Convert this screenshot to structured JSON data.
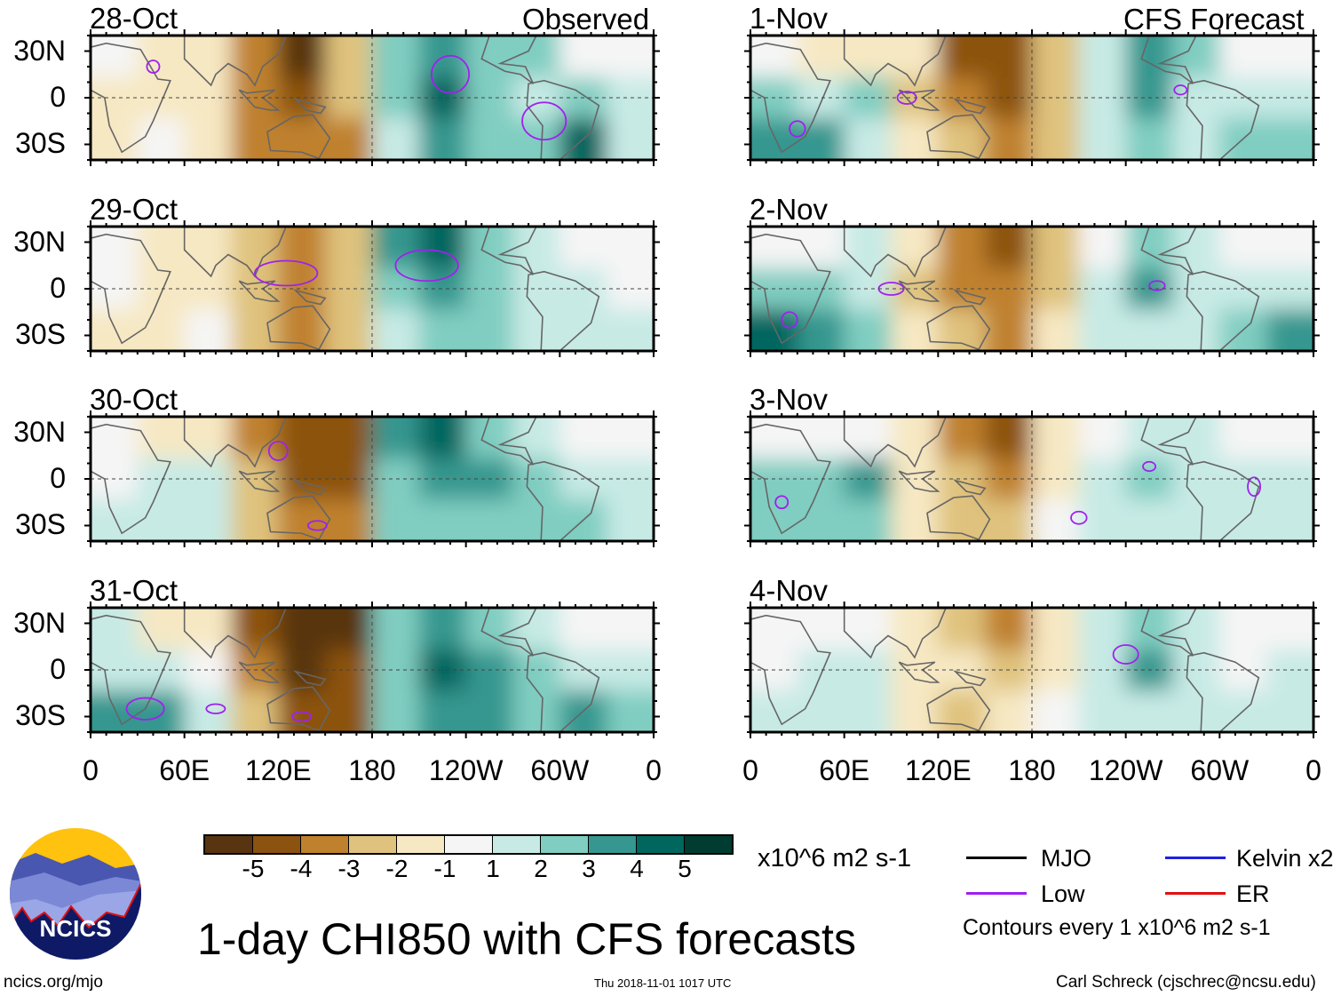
{
  "header": {
    "observed_label": "Observed",
    "forecast_label": "CFS Forecast"
  },
  "yticks": [
    "30N",
    "0",
    "30S"
  ],
  "xticks": [
    "0",
    "60E",
    "120E",
    "180",
    "120W",
    "60W",
    "0"
  ],
  "colorbar": {
    "labels": [
      "-5",
      "-4",
      "-3",
      "-2",
      "-1",
      "1",
      "2",
      "3",
      "4",
      "5"
    ],
    "colors": [
      "#583510",
      "#8c520f",
      "#bf812d",
      "#dfc27d",
      "#f6e8c3",
      "#f5f5f5",
      "#c7eae5",
      "#80cdc1",
      "#35978f",
      "#01665e",
      "#003c30"
    ],
    "units": "x10^6 m2 s-1"
  },
  "legend": {
    "items": [
      {
        "label": "MJO",
        "color": "#000000"
      },
      {
        "label": "Low",
        "color": "#a020f0"
      },
      {
        "label": "Kelvin x2",
        "color": "#2020e0"
      },
      {
        "label": "ER",
        "color": "#e01010"
      }
    ],
    "contours": "Contours every 1 x10^6 m2 s-1"
  },
  "title": "1-day CHI850 with CFS forecasts",
  "footer": {
    "url": "ncics.org/mjo",
    "timestamp": "Thu 2018-11-01 1017 UTC",
    "author": "Carl Schreck (cjschrec@ncsu.edu)"
  },
  "logo": {
    "text": "NCICS"
  },
  "chart_data": {
    "type": "heatmap",
    "title": "1-day CHI850 with CFS forecasts",
    "units": "x10^6 m2 s-1",
    "lon_range": [
      0,
      360
    ],
    "lat_range": [
      -40,
      40
    ],
    "grid_lon_centers": [
      15,
      45,
      75,
      105,
      135,
      165,
      195,
      225,
      255,
      285,
      315,
      345
    ],
    "grid_lat_rows": [
      "25N",
      "0",
      "25S"
    ],
    "panels": [
      {
        "date": "28-Oct",
        "kind": "observed",
        "values": [
          [
            0,
            -1,
            -1
          ],
          [
            -1,
            -1,
            0
          ],
          [
            -1,
            -1,
            -1
          ],
          [
            -3,
            -3,
            -3
          ],
          [
            -5,
            -4,
            -3
          ],
          [
            -2,
            -2,
            -3
          ],
          [
            2,
            2,
            1
          ],
          [
            3,
            4,
            3
          ],
          [
            2,
            2,
            2
          ],
          [
            2,
            1,
            2
          ],
          [
            0,
            2,
            4
          ],
          [
            0,
            1,
            1
          ]
        ],
        "low_contours": [
          [
            40,
            20,
            4,
            4
          ],
          [
            230,
            15,
            12,
            12
          ],
          [
            290,
            -15,
            14,
            12
          ]
        ]
      },
      {
        "date": "29-Oct",
        "kind": "observed",
        "values": [
          [
            0,
            0,
            -1
          ],
          [
            -1,
            -1,
            -1
          ],
          [
            -1,
            -1,
            0
          ],
          [
            -2,
            -2,
            -2
          ],
          [
            -3,
            -3,
            -3
          ],
          [
            -2,
            -2,
            -2
          ],
          [
            3,
            2,
            1
          ],
          [
            4,
            3,
            2
          ],
          [
            2,
            2,
            2
          ],
          [
            1,
            1,
            1
          ],
          [
            0,
            1,
            1
          ],
          [
            0,
            0,
            1
          ]
        ],
        "low_contours": [
          [
            215,
            15,
            20,
            10
          ],
          [
            125,
            10,
            20,
            8
          ]
        ]
      },
      {
        "date": "30-Oct",
        "kind": "observed",
        "values": [
          [
            0,
            0,
            1
          ],
          [
            -1,
            1,
            1
          ],
          [
            -1,
            1,
            1
          ],
          [
            -3,
            -2,
            -2
          ],
          [
            -4,
            -4,
            -3
          ],
          [
            -4,
            -4,
            -3
          ],
          [
            3,
            2,
            2
          ],
          [
            4,
            3,
            2
          ],
          [
            2,
            3,
            2
          ],
          [
            1,
            2,
            2
          ],
          [
            0,
            1,
            2
          ],
          [
            0,
            1,
            1
          ]
        ],
        "low_contours": [
          [
            120,
            18,
            6,
            6
          ],
          [
            145,
            -30,
            6,
            3
          ]
        ]
      },
      {
        "date": "31-Oct",
        "kind": "observed",
        "values": [
          [
            1,
            1,
            3
          ],
          [
            -1,
            1,
            3
          ],
          [
            -1,
            0,
            1
          ],
          [
            -4,
            -3,
            -2
          ],
          [
            -5,
            -5,
            -4
          ],
          [
            -5,
            -4,
            -4
          ],
          [
            2,
            2,
            2
          ],
          [
            3,
            4,
            3
          ],
          [
            2,
            3,
            3
          ],
          [
            1,
            2,
            2
          ],
          [
            0,
            1,
            3
          ],
          [
            0,
            1,
            2
          ]
        ],
        "low_contours": [
          [
            35,
            -25,
            12,
            7
          ],
          [
            80,
            -25,
            6,
            3
          ],
          [
            135,
            -30,
            6,
            3
          ]
        ]
      },
      {
        "date": "1-Nov",
        "kind": "forecast",
        "values": [
          [
            0,
            2,
            3
          ],
          [
            -1,
            1,
            3
          ],
          [
            -1,
            2,
            1
          ],
          [
            -1,
            -2,
            -1
          ],
          [
            -4,
            -3,
            -2
          ],
          [
            -4,
            -4,
            -3
          ],
          [
            -2,
            -2,
            -2
          ],
          [
            1,
            1,
            1
          ],
          [
            3,
            3,
            2
          ],
          [
            2,
            1,
            1
          ],
          [
            0,
            1,
            2
          ],
          [
            0,
            1,
            2
          ]
        ],
        "low_contours": [
          [
            30,
            -20,
            5,
            5
          ],
          [
            100,
            0,
            6,
            4
          ],
          [
            275,
            5,
            4,
            3
          ]
        ]
      },
      {
        "date": "2-Nov",
        "kind": "forecast",
        "values": [
          [
            0,
            2,
            4
          ],
          [
            0,
            2,
            3
          ],
          [
            1,
            1,
            2
          ],
          [
            -1,
            -2,
            -1
          ],
          [
            -3,
            -3,
            -2
          ],
          [
            -4,
            -3,
            -3
          ],
          [
            -2,
            -2,
            -1
          ],
          [
            0,
            1,
            1
          ],
          [
            2,
            3,
            1
          ],
          [
            1,
            1,
            1
          ],
          [
            0,
            1,
            2
          ],
          [
            0,
            1,
            3
          ]
        ],
        "low_contours": [
          [
            25,
            -20,
            5,
            5
          ],
          [
            90,
            0,
            8,
            4
          ],
          [
            260,
            2,
            5,
            3
          ]
        ]
      },
      {
        "date": "3-Nov",
        "kind": "forecast",
        "values": [
          [
            0,
            2,
            2
          ],
          [
            0,
            2,
            2
          ],
          [
            0,
            3,
            2
          ],
          [
            -1,
            -1,
            -1
          ],
          [
            -3,
            -2,
            -2
          ],
          [
            -4,
            -3,
            -2
          ],
          [
            -1,
            -1,
            0
          ],
          [
            0,
            1,
            1
          ],
          [
            1,
            2,
            1
          ],
          [
            1,
            1,
            1
          ],
          [
            0,
            1,
            1
          ],
          [
            0,
            1,
            1
          ]
        ],
        "low_contours": [
          [
            20,
            -15,
            4,
            4
          ],
          [
            255,
            8,
            4,
            3
          ],
          [
            322,
            -5,
            4,
            6
          ],
          [
            210,
            -25,
            5,
            4
          ]
        ]
      },
      {
        "date": "4-Nov",
        "kind": "forecast",
        "values": [
          [
            0,
            0,
            1
          ],
          [
            0,
            1,
            1
          ],
          [
            0,
            1,
            1
          ],
          [
            -1,
            -1,
            -1
          ],
          [
            -2,
            -1,
            -2
          ],
          [
            -3,
            -2,
            -1
          ],
          [
            -1,
            -1,
            0
          ],
          [
            1,
            1,
            1
          ],
          [
            2,
            3,
            1
          ],
          [
            1,
            1,
            1
          ],
          [
            0,
            0,
            1
          ],
          [
            0,
            1,
            1
          ]
        ],
        "low_contours": [
          [
            240,
            10,
            8,
            6
          ]
        ]
      }
    ]
  }
}
